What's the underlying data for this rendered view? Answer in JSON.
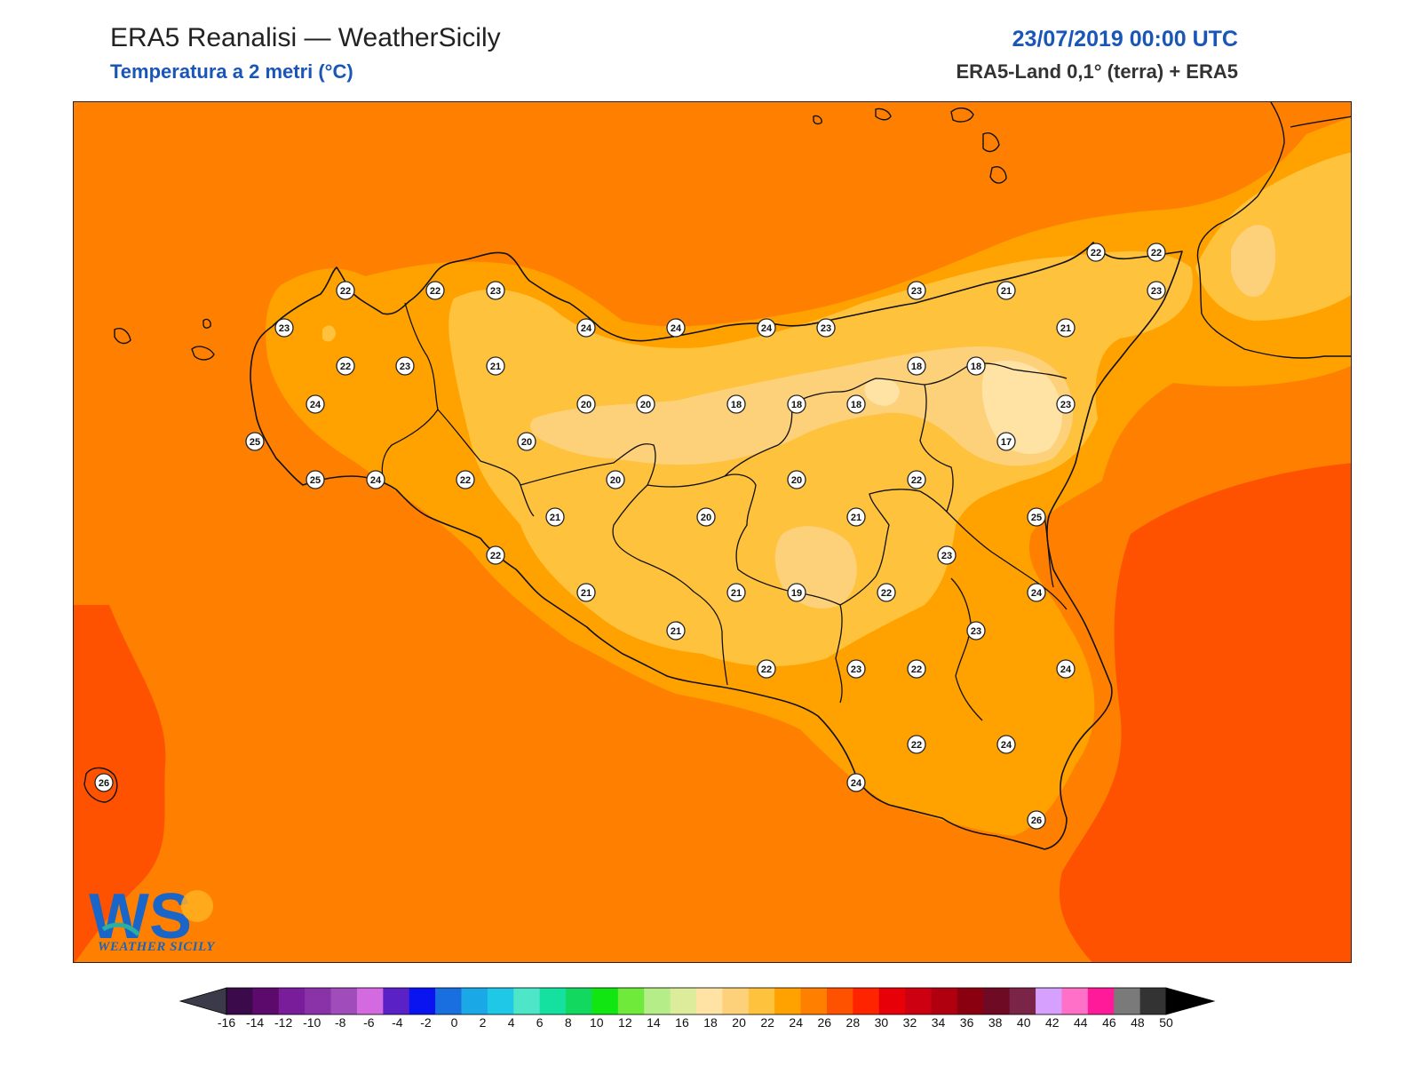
{
  "header": {
    "title": "ERA5 Reanalisi — WeatherSicily",
    "subtitle": "Temperatura a 2 metri (°C)",
    "datetime": "23/07/2019 00:00 UTC",
    "source": "ERA5-Land 0,1° (terra) + ERA5"
  },
  "logo": {
    "letters": "WS",
    "text": "WEATHER SICILY"
  },
  "colors": {
    "sea_base": "#ff8000",
    "sea_warm": "#ff5200",
    "land_24": "#ffa200",
    "land_22": "#ffc23c",
    "land_20": "#fdd07a",
    "land_18": "#ffe3a5",
    "border": "#111111"
  },
  "stations": [
    {
      "v": "22"
    },
    {
      "v": "23"
    },
    {
      "v": "22"
    },
    {
      "v": "23"
    },
    {
      "v": "22"
    },
    {
      "v": "23"
    },
    {
      "v": "21"
    },
    {
      "v": "24"
    },
    {
      "v": "25"
    },
    {
      "v": "25"
    },
    {
      "v": "24"
    },
    {
      "v": "22"
    },
    {
      "v": "20"
    },
    {
      "v": "20"
    },
    {
      "v": "20"
    },
    {
      "v": "18"
    },
    {
      "v": "18"
    },
    {
      "v": "18"
    },
    {
      "v": "18"
    },
    {
      "v": "18"
    },
    {
      "v": "17"
    },
    {
      "v": "23"
    },
    {
      "v": "21"
    },
    {
      "v": "22"
    },
    {
      "v": "22"
    },
    {
      "v": "23"
    },
    {
      "v": "21"
    },
    {
      "v": "23"
    },
    {
      "v": "24"
    },
    {
      "v": "24"
    },
    {
      "v": "24"
    },
    {
      "v": "23"
    },
    {
      "v": "20"
    },
    {
      "v": "20"
    },
    {
      "v": "22"
    },
    {
      "v": "21"
    },
    {
      "v": "21"
    },
    {
      "v": "20"
    },
    {
      "v": "22"
    },
    {
      "v": "23"
    },
    {
      "v": "25"
    },
    {
      "v": "21"
    },
    {
      "v": "21"
    },
    {
      "v": "19"
    },
    {
      "v": "22"
    },
    {
      "v": "21"
    },
    {
      "v": "24"
    },
    {
      "v": "23"
    },
    {
      "v": "22"
    },
    {
      "v": "23"
    },
    {
      "v": "22"
    },
    {
      "v": "24"
    },
    {
      "v": "22"
    },
    {
      "v": "24"
    },
    {
      "v": "24"
    },
    {
      "v": "26"
    },
    {
      "v": "26"
    }
  ],
  "colorbar": {
    "ticks": [
      "-16",
      "-14",
      "-12",
      "-10",
      "-8",
      "-6",
      "-4",
      "-2",
      "0",
      "2",
      "4",
      "6",
      "8",
      "10",
      "12",
      "14",
      "16",
      "18",
      "20",
      "22",
      "24",
      "26",
      "28",
      "30",
      "32",
      "34",
      "36",
      "38",
      "40",
      "42",
      "44",
      "46",
      "48",
      "50"
    ],
    "colors": [
      "#3b0a4a",
      "#5c0a6b",
      "#7a1d9a",
      "#8a33a8",
      "#a04dbb",
      "#d46ae0",
      "#5a22c6",
      "#0a14f0",
      "#1a6fe0",
      "#1aa8e6",
      "#1ec8e6",
      "#4de6c8",
      "#14e0a0",
      "#12d860",
      "#12e612",
      "#70ea3a",
      "#b5ee88",
      "#dcec9a",
      "#ffe3a5",
      "#fdd07a",
      "#ffc23c",
      "#ffa200",
      "#ff8000",
      "#ff5200",
      "#ff2400",
      "#e80008",
      "#cc0010",
      "#b00010",
      "#8a0010",
      "#6e0a24",
      "#7a2448",
      "#d6a0ff",
      "#ff70c8",
      "#ff1a9a",
      "#7a7a7a",
      "#333333"
    ],
    "under_color": "#3a3a48",
    "over_color": "#000000"
  }
}
